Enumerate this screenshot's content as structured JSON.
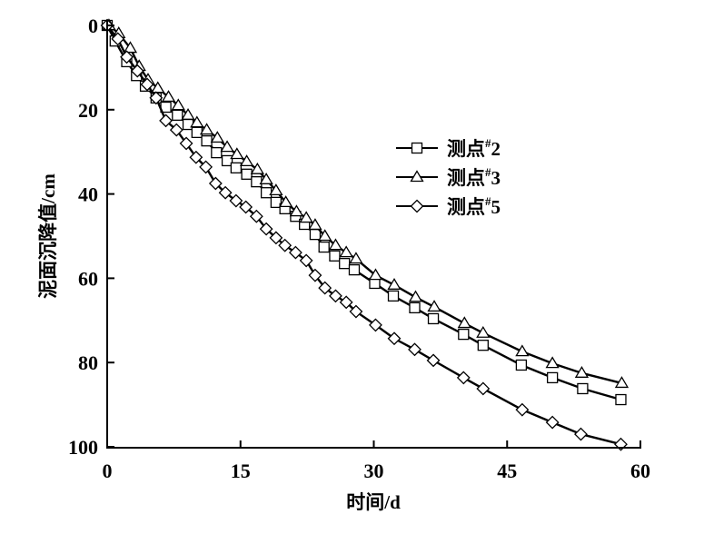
{
  "chart_data": {
    "type": "line",
    "title": "",
    "xlabel": "时间/d",
    "ylabel": "泥面沉降值/cm",
    "xlim": [
      0,
      60
    ],
    "ylim": [
      0,
      100
    ],
    "y_inverted": true,
    "xticks": [
      "0",
      "15",
      "30",
      "45",
      "60"
    ],
    "yticks": [
      "0",
      "20",
      "40",
      "60",
      "80",
      "100"
    ],
    "grid": false,
    "legend_position": "center-right",
    "series": [
      {
        "name": "测点#2",
        "marker": "square",
        "x": [
          0,
          0.9,
          2.2,
          3.3,
          4.3,
          5.5,
          6.6,
          7.9,
          9.1,
          10.1,
          11.2,
          12.3,
          13.5,
          14.5,
          15.7,
          16.8,
          17.9,
          19,
          20,
          21.2,
          22.2,
          23.4,
          24.4,
          25.6,
          26.7,
          27.8,
          30.1,
          32.2,
          34.6,
          36.7,
          40.1,
          42.3,
          46.6,
          50.1,
          53.5,
          57.8
        ],
        "y": [
          0,
          3.7,
          8.6,
          11.9,
          14.4,
          17.2,
          19.4,
          21.3,
          23.5,
          25.4,
          27.4,
          30.2,
          32.1,
          33.8,
          35.3,
          37.1,
          39.7,
          42,
          43.5,
          45.3,
          47.2,
          49.6,
          52.6,
          54.7,
          56.5,
          58,
          61.2,
          64.2,
          67,
          69.6,
          73.3,
          75.9,
          80.6,
          83.6,
          86.2,
          88.8
        ]
      },
      {
        "name": "测点#3",
        "marker": "triangle",
        "x": [
          0.2,
          1.3,
          2.6,
          3.6,
          4.6,
          5.7,
          6.9,
          8,
          9.1,
          10.1,
          11.2,
          12.4,
          13.5,
          14.6,
          15.7,
          16.9,
          17.9,
          19,
          20.1,
          21.3,
          22.4,
          23.4,
          24.5,
          25.7,
          26.9,
          28,
          30.2,
          32.3,
          34.7,
          36.8,
          40.2,
          42.3,
          46.7,
          50.1,
          53.4,
          57.9
        ],
        "y": [
          0,
          1.9,
          5.4,
          9.7,
          12.9,
          14.9,
          17,
          19,
          21.3,
          23.1,
          24.8,
          26.7,
          28.9,
          30.6,
          32.3,
          34.2,
          36.6,
          39.2,
          42,
          44.2,
          45.7,
          47.4,
          50,
          52.2,
          53.9,
          55.4,
          59.3,
          61.6,
          64.5,
          66.8,
          70.7,
          73,
          77.4,
          80.2,
          82.5,
          84.9
        ]
      },
      {
        "name": "测点#5",
        "marker": "diamond",
        "x": [
          0,
          1.2,
          2.2,
          3.4,
          4.5,
          5.5,
          6.6,
          7.8,
          8.9,
          10,
          11.1,
          12.2,
          13.3,
          14.5,
          15.6,
          16.8,
          17.9,
          19,
          20,
          21.2,
          22.4,
          23.4,
          24.5,
          25.7,
          26.9,
          28,
          30.2,
          32.3,
          34.6,
          36.7,
          40.1,
          42.3,
          46.7,
          50.1,
          53.3,
          57.8
        ],
        "y": [
          0,
          3.2,
          7.5,
          10.8,
          14,
          17.2,
          22.6,
          24.8,
          28,
          31.3,
          33.6,
          37.5,
          39.7,
          41.6,
          43.1,
          45.3,
          48.3,
          50.4,
          52.2,
          53.9,
          55.8,
          59.3,
          62.3,
          64.2,
          65.7,
          67.9,
          71.1,
          74.3,
          76.9,
          79.5,
          83.6,
          86.2,
          91.2,
          94.2,
          97,
          99.4
        ]
      }
    ]
  }
}
